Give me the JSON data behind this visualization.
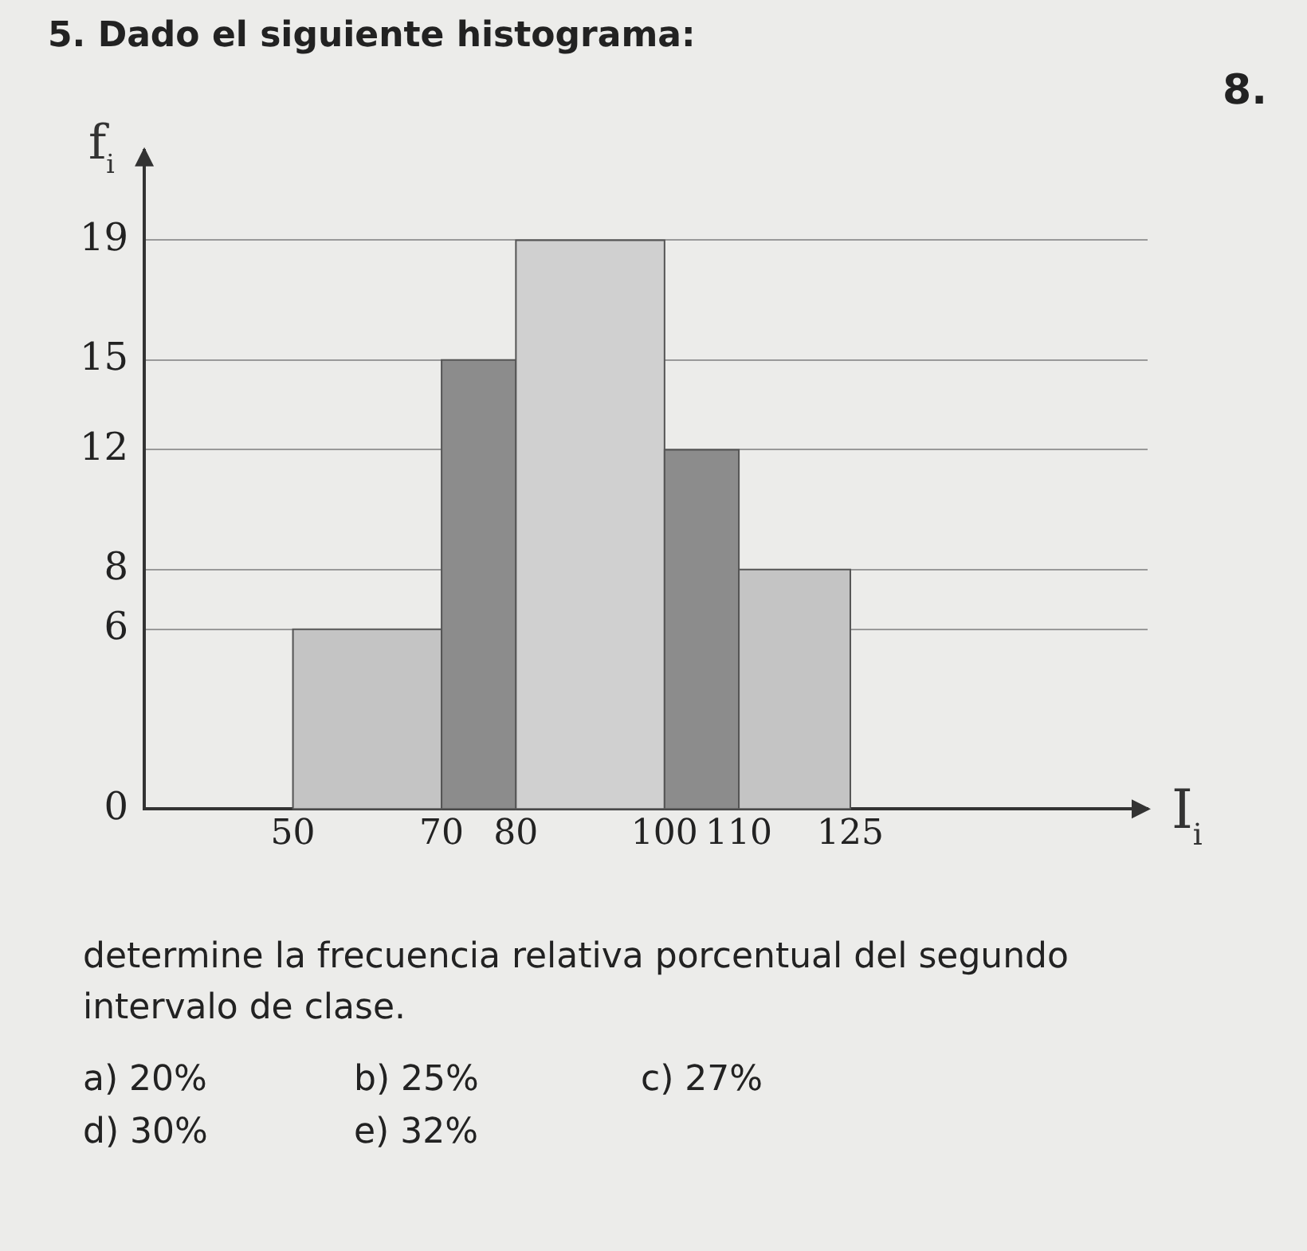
{
  "chart_data": {
    "type": "histogram",
    "title": "5. Dado el siguiente histograma:",
    "xlabel": "I$_{i}$",
    "ylabel": "f$_{i}$",
    "bins": [
      50,
      70,
      80,
      100,
      110,
      125
    ],
    "values": [
      6,
      15,
      19,
      12,
      8
    ],
    "colors": [
      "#c4c4c4",
      "#8c8c8c",
      "#d0d0d0",
      "#8c8c8c",
      "#c4c4c4"
    ],
    "xlim": [
      30,
      165
    ],
    "xticks": [
      50,
      70,
      80,
      100,
      110,
      125
    ],
    "ylim": [
      0,
      22
    ],
    "yticks": [
      0,
      6,
      8,
      12,
      15,
      19
    ],
    "grid": "y",
    "annotations": [
      "8.",
      "determine la frecuencia relativa porcentual del segundo intervalo de clase.",
      "a) 20%",
      "b) 25%",
      "c) 27%",
      "d) 30%",
      "e) 32%"
    ]
  }
}
